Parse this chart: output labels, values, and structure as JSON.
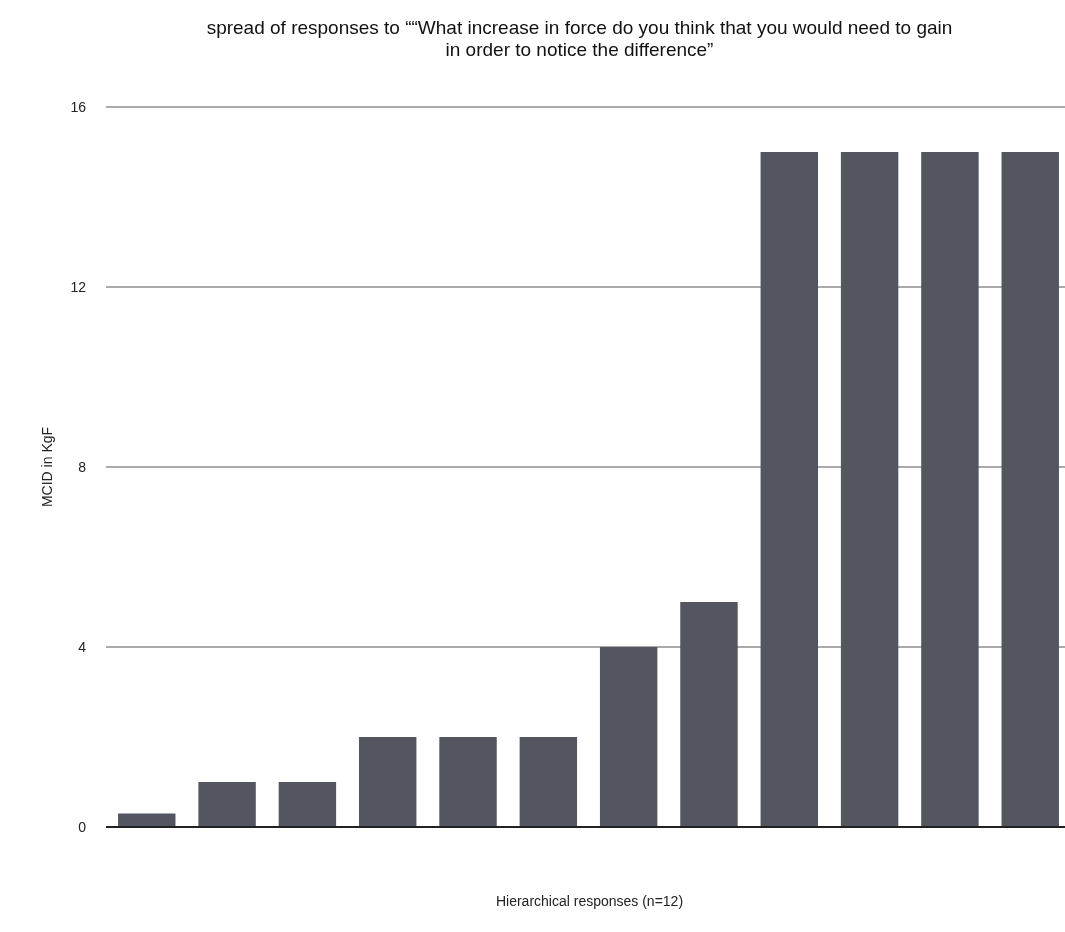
{
  "chart_data": {
    "type": "bar",
    "title": "spread of responses to ““What increase in force do you think that you would need to gain in order to notice the difference”",
    "xlabel": "Hierarchical responses (n=12)",
    "ylabel": "MCID in KgF",
    "categories": [
      null,
      null,
      null,
      null,
      null,
      null,
      null,
      null,
      null,
      null,
      null,
      null
    ],
    "values": [
      0.3,
      1,
      1,
      2,
      2,
      2,
      4,
      5,
      15,
      15,
      15,
      15
    ],
    "color": "#53565e",
    "ylim": [
      0,
      16
    ],
    "yticks": [
      0,
      4,
      8,
      12,
      16
    ],
    "grid": "y"
  }
}
